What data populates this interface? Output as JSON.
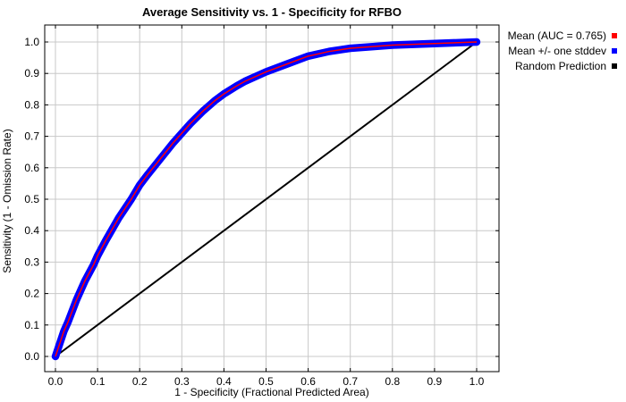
{
  "chart_data": {
    "type": "line",
    "title": "Average Sensitivity vs. 1 - Specificity for RFBO",
    "xlabel": "1 - Specificity (Fractional Predicted Area)",
    "ylabel": "Sensitivity (1 - Omission Rate)",
    "xlim": [
      0.0,
      1.0
    ],
    "ylim": [
      0.0,
      1.0
    ],
    "xticks": [
      "0.0",
      "0.1",
      "0.2",
      "0.3",
      "0.4",
      "0.5",
      "0.6",
      "0.7",
      "0.8",
      "0.9",
      "1.0"
    ],
    "yticks": [
      "0.0",
      "0.1",
      "0.2",
      "0.3",
      "0.4",
      "0.5",
      "0.6",
      "0.7",
      "0.8",
      "0.9",
      "1.0"
    ],
    "grid": true,
    "legend_position": "top-right-outside",
    "series": [
      {
        "name": "Mean (AUC = 0.765)",
        "color": "#ff0000",
        "x": [
          0.0,
          0.01,
          0.02,
          0.03,
          0.05,
          0.07,
          0.09,
          0.1,
          0.12,
          0.15,
          0.18,
          0.2,
          0.22,
          0.25,
          0.28,
          0.3,
          0.32,
          0.35,
          0.38,
          0.4,
          0.43,
          0.45,
          0.5,
          0.55,
          0.6,
          0.65,
          0.7,
          0.75,
          0.8,
          0.9,
          1.0
        ],
        "y": [
          0.0,
          0.04,
          0.08,
          0.11,
          0.18,
          0.24,
          0.29,
          0.32,
          0.37,
          0.44,
          0.5,
          0.545,
          0.58,
          0.63,
          0.68,
          0.71,
          0.74,
          0.78,
          0.815,
          0.835,
          0.86,
          0.875,
          0.905,
          0.93,
          0.955,
          0.97,
          0.98,
          0.985,
          0.99,
          0.995,
          1.0
        ]
      },
      {
        "name": "Mean +/- one stddev",
        "color": "#0000ff",
        "band_halfwidth": 0.012
      },
      {
        "name": "Random Prediction",
        "color": "#000000",
        "x": [
          0.0,
          1.0
        ],
        "y": [
          0.0,
          1.0
        ]
      }
    ]
  }
}
